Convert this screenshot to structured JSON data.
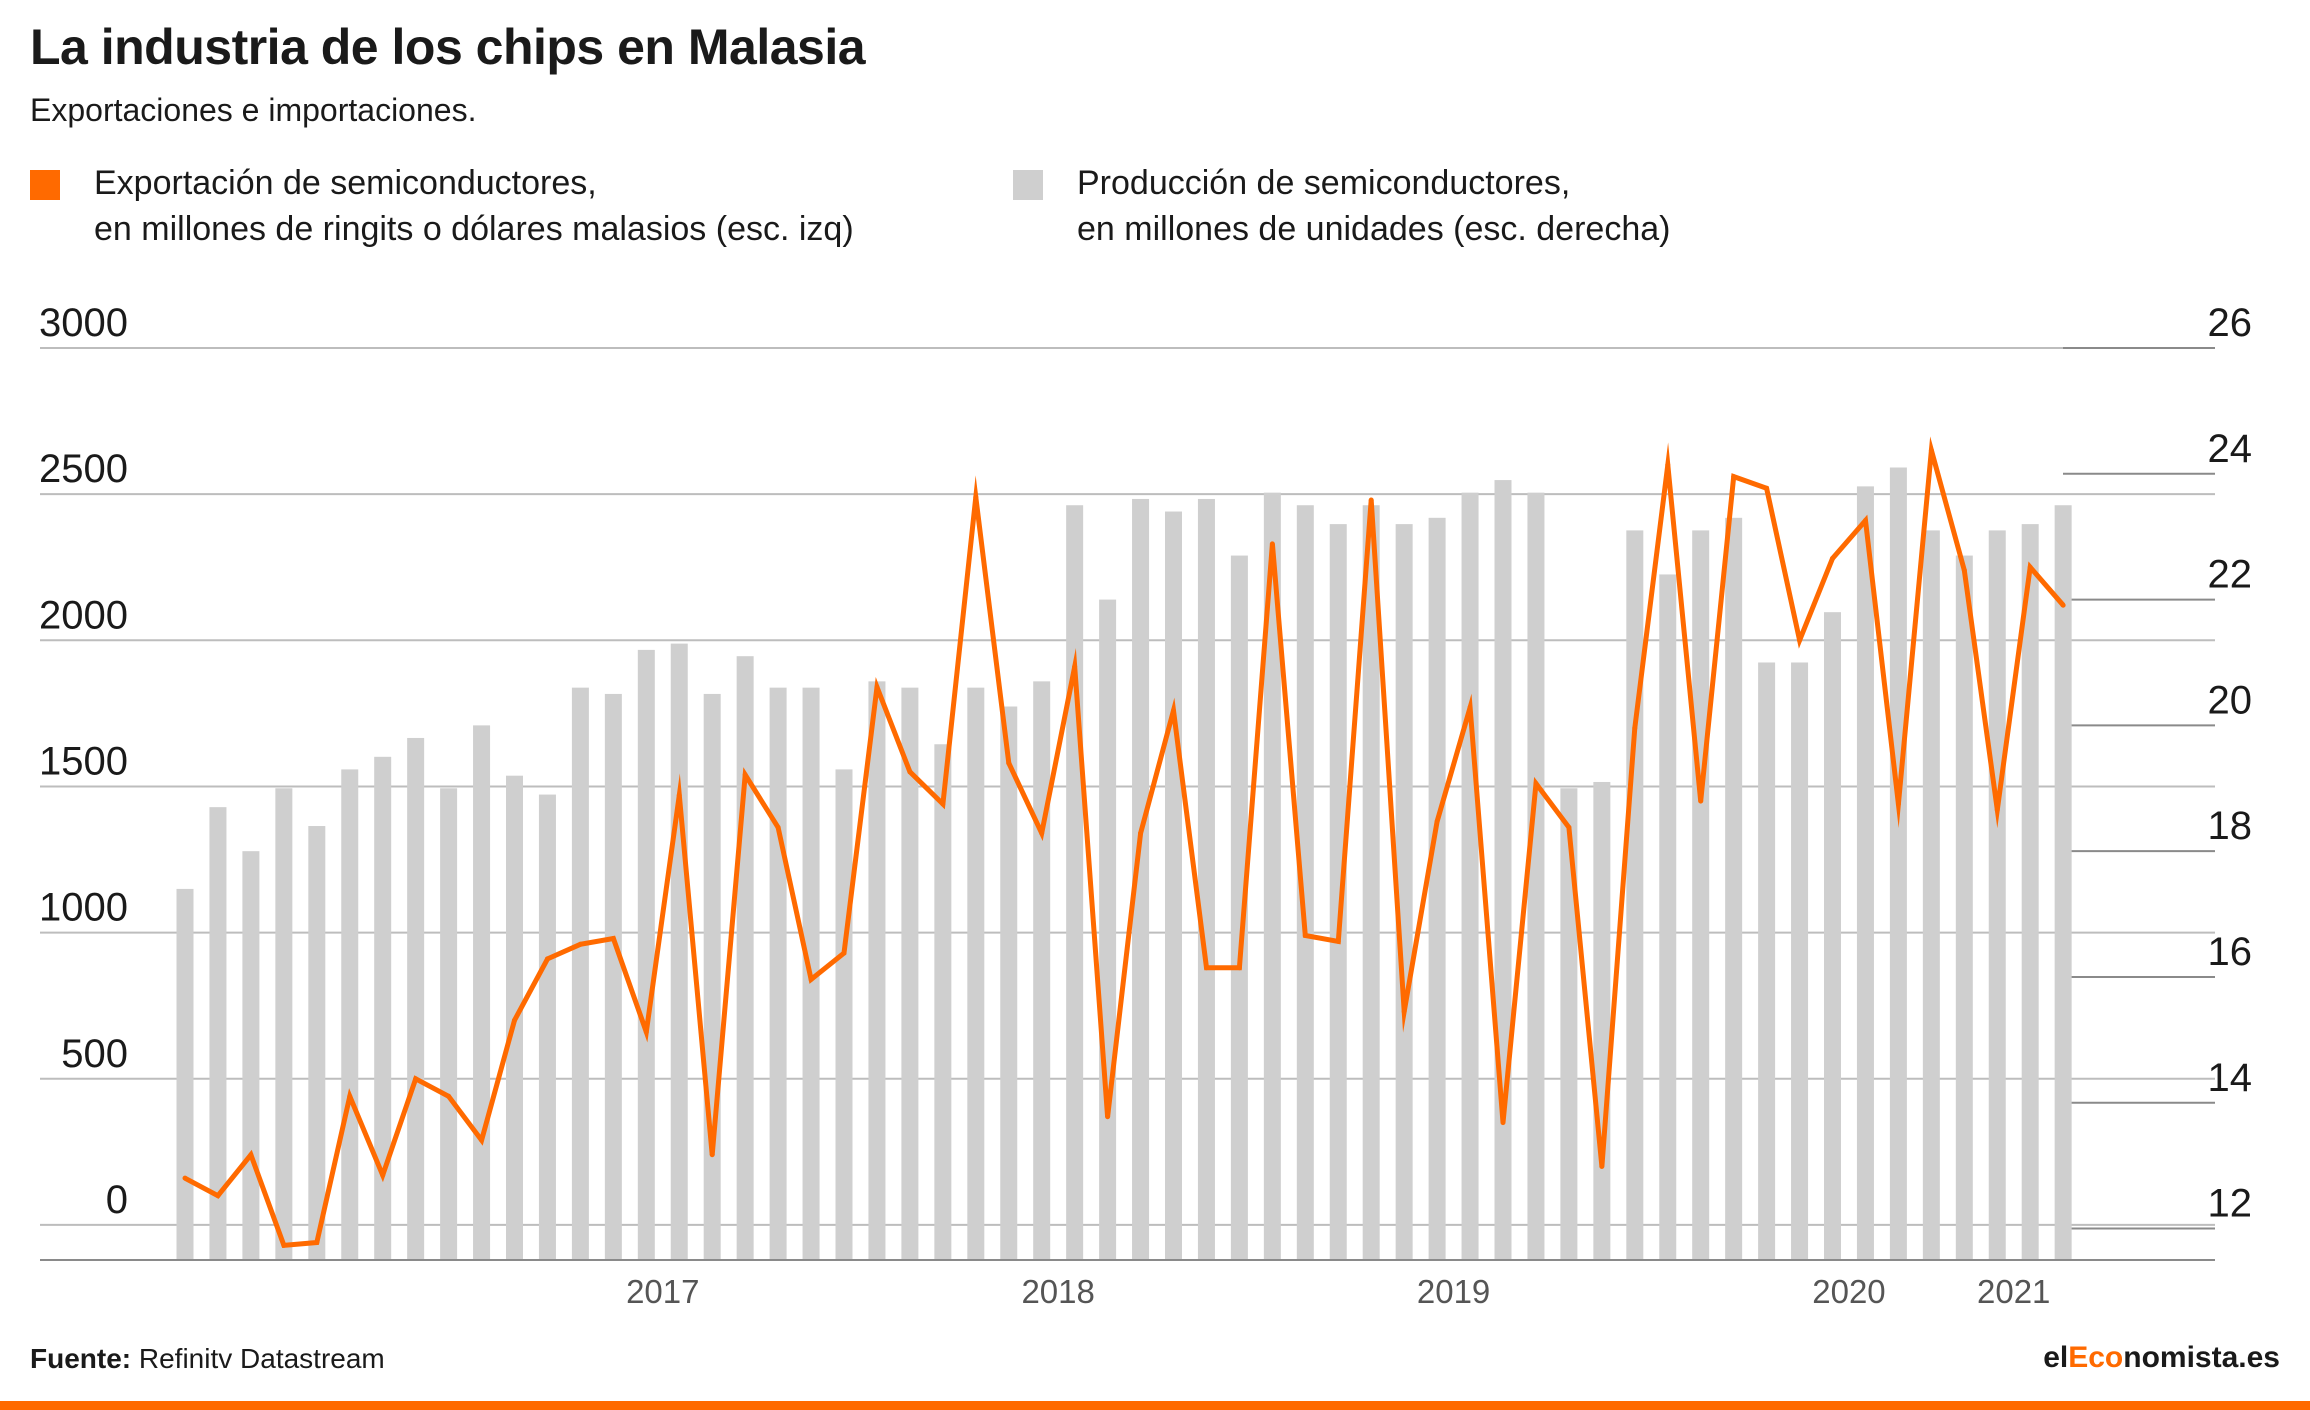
{
  "title": "La industria de los chips en Malasia",
  "subtitle": "Exportaciones e importaciones.",
  "legend": {
    "line": {
      "line1": "Exportación de semiconductores,",
      "line2": "en millones de ringits o dólares malasios (esc. izq)",
      "color": "#ff6a00"
    },
    "bar": {
      "line1": "Producción de semiconductores,",
      "line2": "en millones de unidades (esc. derecha)",
      "color": "#cfcfcf"
    }
  },
  "source_label": "Fuente:",
  "source_text": " Refinitv Datastream",
  "brand": {
    "a": "el",
    "b": "Eco",
    "c": "nomista.es"
  },
  "chart_data": {
    "type": "bar+line",
    "x_start": "2016-04",
    "x_tick_labels": [
      "2017",
      "2018",
      "2019",
      "2020",
      "2021"
    ],
    "left_axis": {
      "ticks": [
        0,
        500,
        1000,
        1500,
        2000,
        2500,
        3000
      ],
      "ylim": [
        -120,
        3000
      ]
    },
    "right_axis": {
      "ticks": [
        12,
        14,
        16,
        18,
        20,
        22,
        24,
        26
      ],
      "ylim": [
        11.5,
        26
      ]
    },
    "grid": true,
    "series": [
      {
        "kind": "bar",
        "axis": "right",
        "values": [
          17.4,
          18.7,
          18.0,
          19.0,
          18.4,
          19.3,
          19.5,
          19.8,
          19.0,
          20.0,
          19.2,
          18.9,
          20.6,
          20.5,
          21.2,
          21.3,
          20.5,
          21.1,
          20.6,
          20.6,
          19.3,
          20.7,
          20.6,
          19.7,
          20.6,
          20.3,
          20.7,
          23.5,
          22.0,
          23.6,
          23.4,
          23.6,
          22.7,
          23.7,
          23.5,
          23.2,
          23.5,
          23.2,
          23.3,
          23.7,
          23.9,
          23.7,
          19.0,
          19.1,
          23.1,
          22.4,
          23.1,
          23.3,
          21.0,
          21.0,
          21.8,
          23.8,
          24.1,
          23.1,
          22.7,
          23.1,
          23.2,
          23.5
        ],
        "color": "#cfcfcf"
      },
      {
        "kind": "line",
        "axis": "left",
        "values": [
          160,
          100,
          240,
          -70,
          -60,
          440,
          170,
          500,
          440,
          290,
          700,
          910,
          960,
          980,
          660,
          1470,
          240,
          1540,
          1360,
          840,
          930,
          1840,
          1550,
          1440,
          2490,
          1580,
          1340,
          1910,
          370,
          1340,
          1760,
          880,
          880,
          2330,
          990,
          970,
          2480,
          730,
          1380,
          1770,
          350,
          1510,
          1360,
          200,
          1700,
          2600,
          1450,
          2560,
          2520,
          2000,
          2280,
          2410,
          1440,
          2650,
          2240,
          1420,
          2250,
          2120
        ],
        "color": "#ff6a00"
      }
    ]
  }
}
